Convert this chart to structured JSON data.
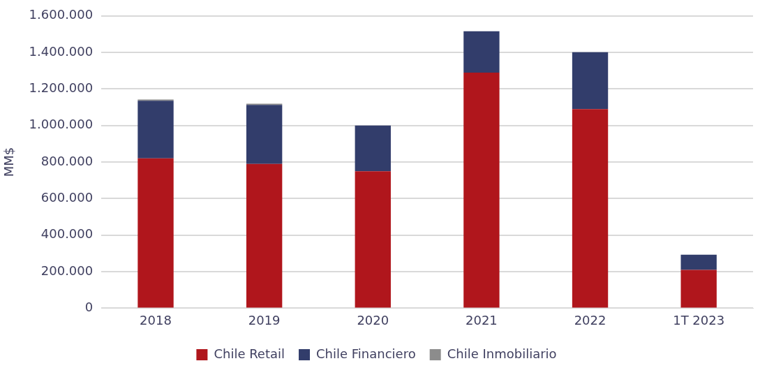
{
  "chart_data": {
    "type": "bar",
    "stacked": true,
    "ylabel": "MM$",
    "categories": [
      "2018",
      "2019",
      "2020",
      "2021",
      "2022",
      "1T 2023"
    ],
    "series": [
      {
        "name": "Chile Retail",
        "color": "#b0161c",
        "values": [
          820000,
          790000,
          750000,
          1290000,
          1090000,
          210000
        ]
      },
      {
        "name": "Chile Financiero",
        "color": "#323d6b",
        "values": [
          316000,
          323000,
          250000,
          226000,
          311000,
          83000
        ]
      },
      {
        "name": "Chile Inmobiliario",
        "color": "#8c8c8c",
        "values": [
          6000,
          7000,
          0,
          0,
          0,
          0
        ]
      }
    ],
    "ylim": [
      0,
      1600000
    ],
    "yticks": [
      {
        "value": 0,
        "label": "0"
      },
      {
        "value": 200000,
        "label": "200.000"
      },
      {
        "value": 400000,
        "label": "400.000"
      },
      {
        "value": 600000,
        "label": "600.000"
      },
      {
        "value": 800000,
        "label": "800.000"
      },
      {
        "value": 1000000,
        "label": "1.000.000"
      },
      {
        "value": 1200000,
        "label": "1.200.000"
      },
      {
        "value": 1400000,
        "label": "1.400.000"
      },
      {
        "value": 1600000,
        "label": "1.600.000"
      }
    ],
    "grid": "y",
    "legend": "bottom"
  }
}
